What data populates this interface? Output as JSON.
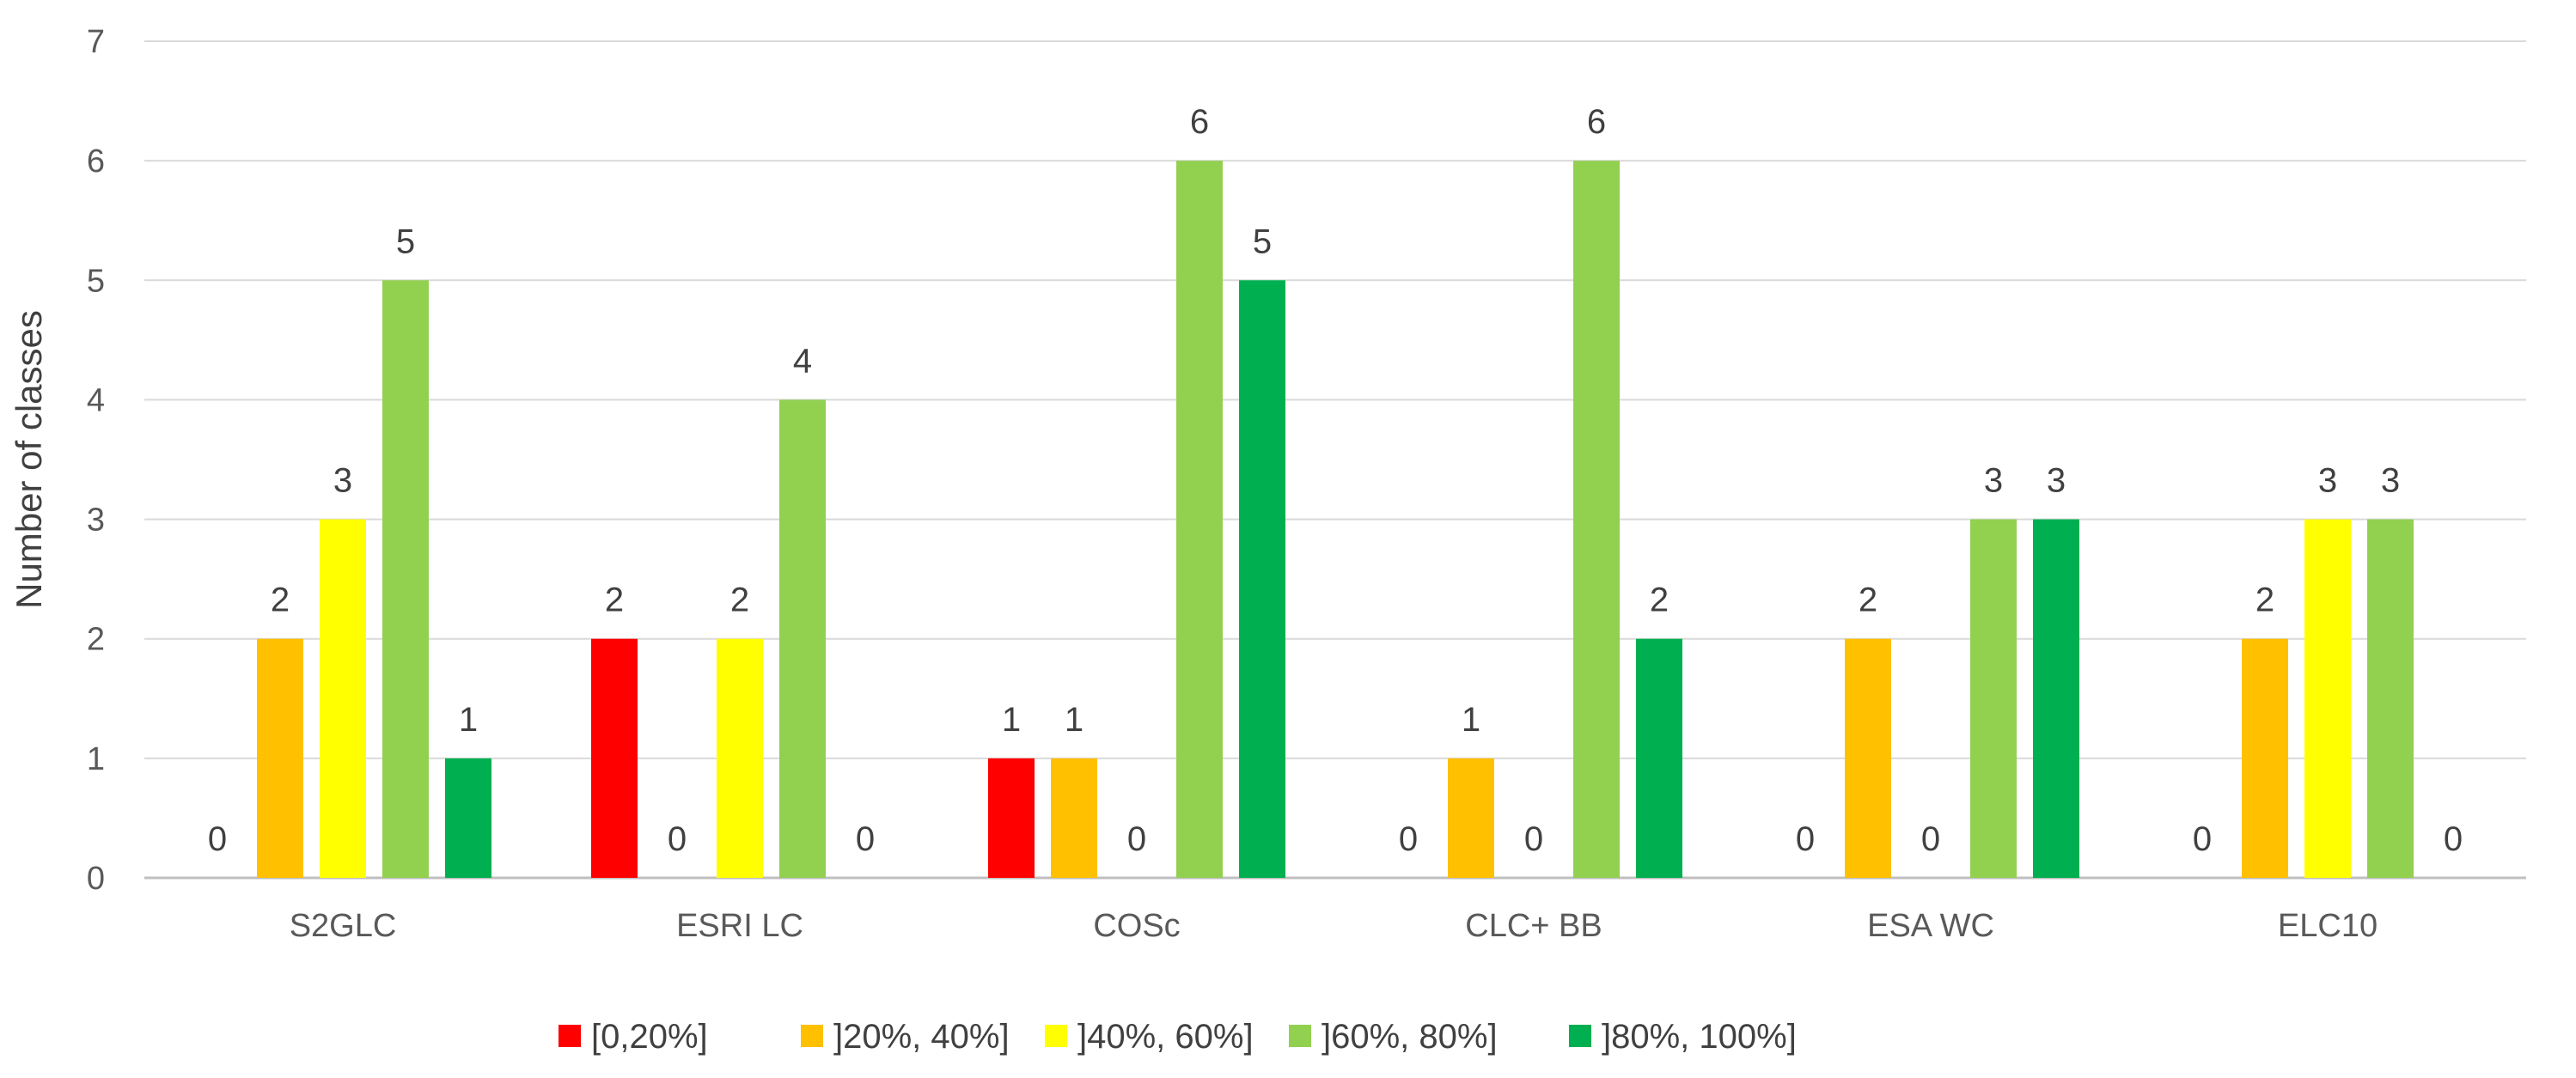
{
  "chart_data": {
    "type": "bar",
    "title": "",
    "xlabel": "",
    "ylabel": "Number of classes",
    "ylim": [
      0,
      7
    ],
    "yticks": [
      0,
      1,
      2,
      3,
      4,
      5,
      6,
      7
    ],
    "grid": true,
    "legend_position": "bottom",
    "categories": [
      "S2GLC",
      "ESRI LC",
      "COSc",
      "CLC+ BB",
      "ESA WC",
      "ELC10"
    ],
    "series": [
      {
        "name": "[0,20%]",
        "color": "#ff0000",
        "values": [
          0,
          2,
          1,
          0,
          0,
          0
        ]
      },
      {
        "name": "]20%, 40%]",
        "color": "#ffc000",
        "values": [
          2,
          0,
          1,
          1,
          2,
          2
        ]
      },
      {
        "name": "]40%, 60%]",
        "color": "#ffff00",
        "values": [
          3,
          2,
          0,
          0,
          0,
          3
        ]
      },
      {
        "name": "]60%, 80%]",
        "color": "#92d050",
        "values": [
          5,
          4,
          6,
          6,
          3,
          3
        ]
      },
      {
        "name": "]80%, 100%]",
        "color": "#00b050",
        "values": [
          1,
          0,
          5,
          2,
          3,
          0
        ]
      }
    ]
  }
}
